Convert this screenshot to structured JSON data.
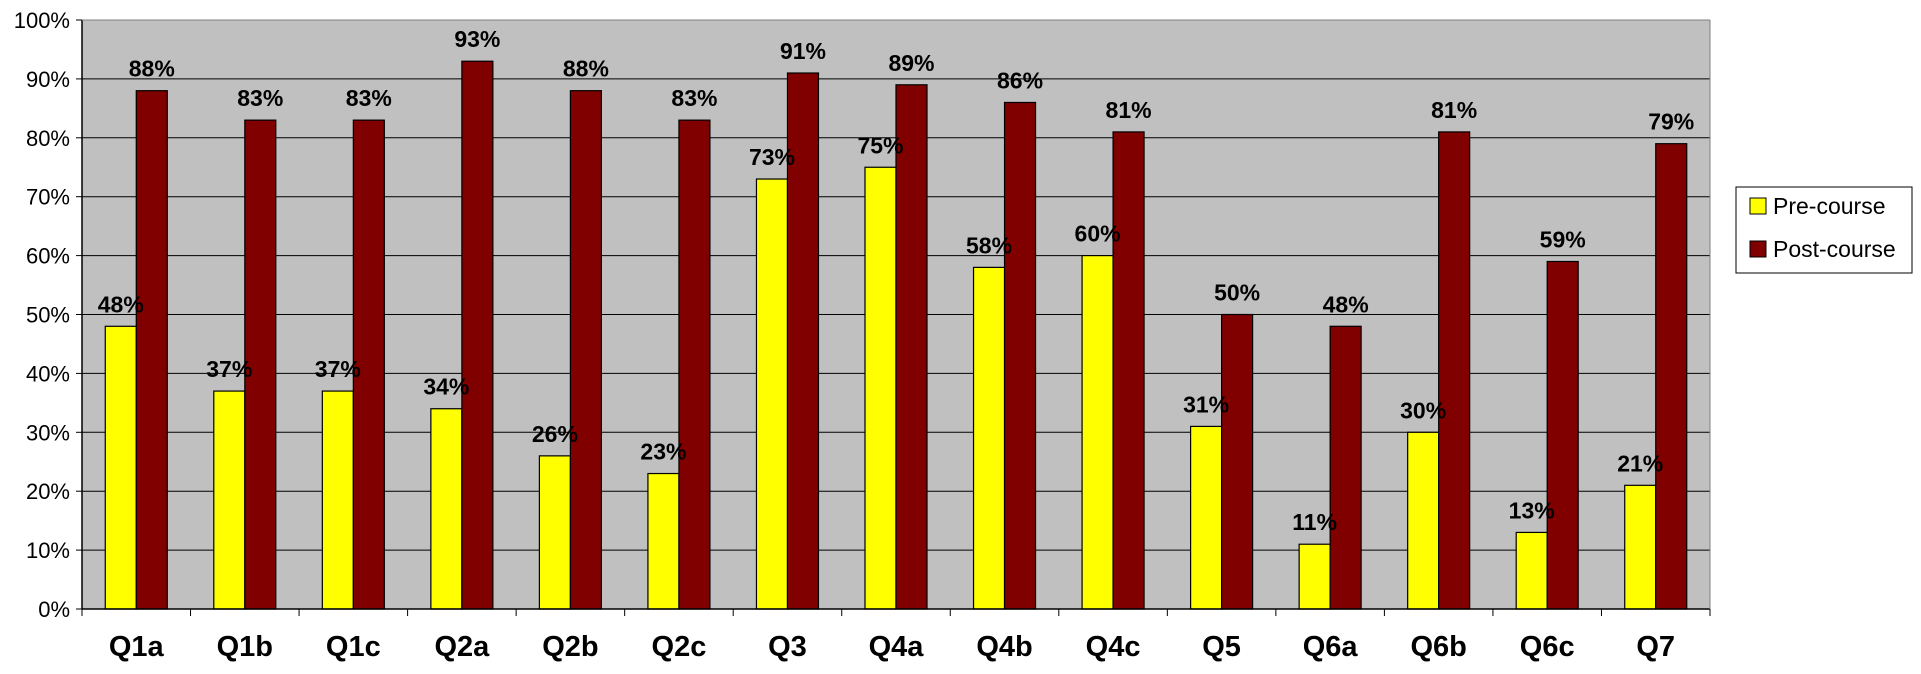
{
  "chart_data": {
    "type": "bar",
    "categories": [
      "Q1a",
      "Q1b",
      "Q1c",
      "Q2a",
      "Q2b",
      "Q2c",
      "Q3",
      "Q4a",
      "Q4b",
      "Q4c",
      "Q5",
      "Q6a",
      "Q6b",
      "Q6c",
      "Q7"
    ],
    "series": [
      {
        "name": "Pre-course",
        "color": "#FFFF00",
        "values": [
          48,
          37,
          37,
          34,
          26,
          23,
          73,
          75,
          58,
          60,
          31,
          11,
          30,
          13,
          21
        ]
      },
      {
        "name": "Post-course",
        "color": "#800000",
        "values": [
          88,
          83,
          83,
          93,
          88,
          83,
          91,
          89,
          86,
          81,
          50,
          48,
          81,
          59,
          79
        ]
      }
    ],
    "ylim": [
      0,
      100
    ],
    "yticks": [
      0,
      10,
      20,
      30,
      40,
      50,
      60,
      70,
      80,
      90,
      100
    ],
    "ytick_labels": [
      "0%",
      "10%",
      "20%",
      "30%",
      "40%",
      "50%",
      "60%",
      "70%",
      "80%",
      "90%",
      "100%"
    ],
    "value_suffix": "%",
    "plot_background": "#C0C0C0",
    "grid": true,
    "legend_position": "right"
  }
}
